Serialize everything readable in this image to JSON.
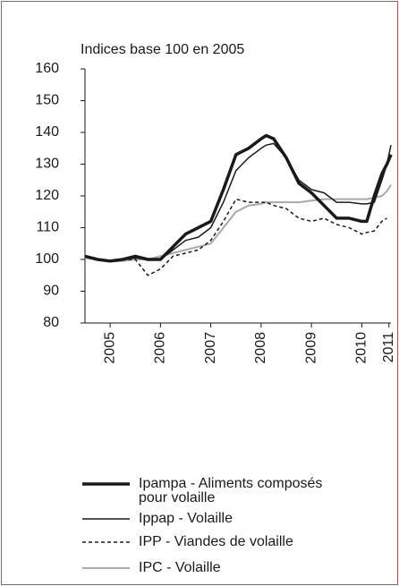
{
  "chart_data": {
    "type": "line",
    "title": "Indices base 100 en 2005",
    "x": [
      2005,
      2005.25,
      2005.5,
      2005.75,
      2006,
      2006.25,
      2006.5,
      2006.75,
      2007,
      2007.25,
      2007.5,
      2007.75,
      2008,
      2008.25,
      2008.5,
      2008.6,
      2008.75,
      2009,
      2009.25,
      2009.5,
      2009.75,
      2010,
      2010.25,
      2010.5,
      2010.6,
      2010.75,
      2010.9,
      2011,
      2011.08
    ],
    "series": [
      {
        "name": "Ipampa - Aliments composés pour volaille",
        "color": "#1a1a1a",
        "line_width": 3.5,
        "style": "solid",
        "values": [
          101,
          100,
          99.5,
          100,
          101,
          100,
          100,
          104,
          108,
          110,
          112,
          122,
          133,
          135,
          138,
          139,
          138,
          132,
          124,
          121,
          117,
          113,
          113,
          112,
          112,
          120,
          127,
          130,
          133
        ]
      },
      {
        "name": "Ippap - Volaille",
        "color": "#1a1a1a",
        "line_width": 1.5,
        "style": "solid",
        "values": [
          101,
          100,
          99.5,
          100,
          100.5,
          100,
          100,
          103,
          106,
          107,
          110,
          118,
          128,
          132,
          135,
          136,
          136.5,
          132,
          125,
          122,
          121,
          118,
          118,
          117.5,
          117.5,
          118,
          125,
          130,
          136
        ]
      },
      {
        "name": "IPP - Viandes de volaille",
        "color": "#1a1a1a",
        "line_width": 1.5,
        "style": "dashed",
        "values": [
          101,
          100,
          99.5,
          100,
          100,
          95,
          97,
          101,
          102,
          103,
          106,
          112,
          119,
          118,
          118,
          118,
          117,
          116,
          113,
          112,
          113,
          111,
          110,
          108,
          108.5,
          109,
          112,
          113,
          null
        ]
      },
      {
        "name": "IPC - Volaille",
        "color": "#aaaaaa",
        "line_width": 2,
        "style": "solid",
        "values": [
          100.5,
          100,
          99.5,
          99.5,
          100,
          100,
          101,
          102,
          103,
          104,
          105,
          110,
          115,
          117,
          117.5,
          118,
          118,
          118,
          118,
          118.5,
          119,
          119,
          119,
          119,
          119,
          119.5,
          120,
          121.5,
          123.5
        ]
      }
    ],
    "xlim": [
      2005,
      2011.08
    ],
    "xticks": [
      {
        "value": 2005.5,
        "label": "2005"
      },
      {
        "value": 2006.5,
        "label": "2006"
      },
      {
        "value": 2007.5,
        "label": "2007"
      },
      {
        "value": 2008.5,
        "label": "2008"
      },
      {
        "value": 2009.5,
        "label": "2009"
      },
      {
        "value": 2010.5,
        "label": "2010"
      },
      {
        "value": 2011.04,
        "label": "2011"
      }
    ],
    "ylim": [
      80,
      160
    ],
    "yticks": [
      80,
      90,
      100,
      110,
      120,
      130,
      140,
      150,
      160
    ]
  }
}
